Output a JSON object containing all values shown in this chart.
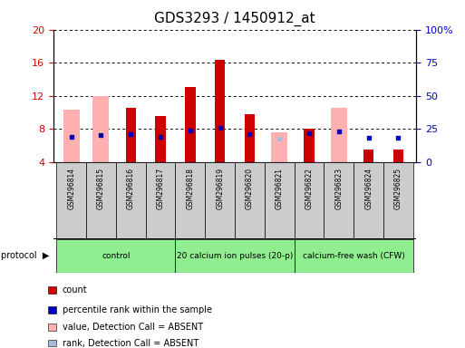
{
  "title": "GDS3293 / 1450912_at",
  "samples": [
    "GSM296814",
    "GSM296815",
    "GSM296816",
    "GSM296817",
    "GSM296818",
    "GSM296819",
    "GSM296820",
    "GSM296821",
    "GSM296822",
    "GSM296823",
    "GSM296824",
    "GSM296825"
  ],
  "count_values": [
    null,
    null,
    10.5,
    9.5,
    13.0,
    16.3,
    9.8,
    null,
    8.0,
    null,
    5.5,
    5.5
  ],
  "pink_bar_top": [
    10.3,
    12.0,
    null,
    null,
    null,
    null,
    null,
    7.6,
    null,
    10.5,
    null,
    null
  ],
  "blue_marker": [
    7.0,
    7.2,
    7.3,
    7.0,
    7.8,
    8.1,
    7.4,
    null,
    7.5,
    7.7,
    6.9,
    6.9
  ],
  "light_blue_marker": [
    null,
    null,
    null,
    null,
    null,
    null,
    null,
    6.8,
    null,
    null,
    null,
    null
  ],
  "ylim_left": [
    4,
    20
  ],
  "ylim_right": [
    0,
    100
  ],
  "yticks_left": [
    4,
    8,
    12,
    16,
    20
  ],
  "yticks_right": [
    0,
    25,
    50,
    75,
    100
  ],
  "bar_color": "#cc0000",
  "pink_color": "#ffb0b0",
  "blue_color": "#0000bb",
  "light_blue_color": "#aabbdd",
  "left_tick_color": "#cc0000",
  "right_tick_color": "#0000cc",
  "bar_width": 0.35,
  "pink_bar_width": 0.55,
  "protocol_groups": [
    {
      "label": "control",
      "start": 0,
      "end": 3
    },
    {
      "label": "20 calcium ion pulses (20-p)",
      "start": 4,
      "end": 7
    },
    {
      "label": "calcium-free wash (CFW)",
      "start": 8,
      "end": 11
    }
  ],
  "protocol_color": "#90ee90",
  "protocol_border": "#000000",
  "sample_box_color": "#cccccc",
  "legend_items": [
    {
      "color": "#cc0000",
      "label": "count"
    },
    {
      "color": "#0000bb",
      "label": "percentile rank within the sample"
    },
    {
      "color": "#ffb0b0",
      "label": "value, Detection Call = ABSENT"
    },
    {
      "color": "#aabbdd",
      "label": "rank, Detection Call = ABSENT"
    }
  ]
}
